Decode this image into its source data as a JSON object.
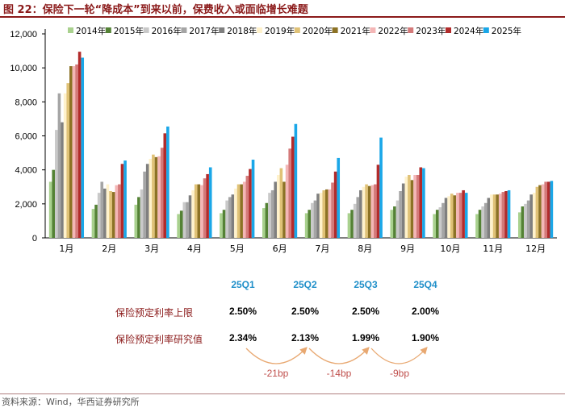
{
  "title": "图 22：保险下一轮“降成本”到来以前，保费收入或面临增长难题",
  "source": "资料来源：Wind，华西证券研究所",
  "chart_data": {
    "type": "bar",
    "categories": [
      "1月",
      "2月",
      "3月",
      "4月",
      "5月",
      "6月",
      "7月",
      "8月",
      "9月",
      "10月",
      "11月",
      "12月"
    ],
    "ylim": [
      0,
      12000
    ],
    "yticks": [
      "0",
      "2,000",
      "4,000",
      "6,000",
      "8,000",
      "10,000",
      "12,000"
    ],
    "series": [
      {
        "name": "2014年",
        "color": "#a9d18e",
        "values": [
          3300,
          1700,
          1950,
          1400,
          1450,
          1750,
          1450,
          1450,
          1650,
          1400,
          1400,
          1500
        ]
      },
      {
        "name": "2015年",
        "color": "#548235",
        "values": [
          4000,
          1950,
          2400,
          1600,
          1650,
          2050,
          1650,
          1650,
          1850,
          1650,
          1650,
          1850
        ]
      },
      {
        "name": "2016年",
        "color": "#c9c9c9",
        "values": [
          6350,
          2650,
          2850,
          2100,
          2200,
          2650,
          2050,
          2000,
          2200,
          1800,
          1850,
          2000
        ]
      },
      {
        "name": "2017年",
        "color": "#a5a5a5",
        "values": [
          8500,
          3300,
          3900,
          2100,
          2400,
          2800,
          2200,
          2400,
          2750,
          2050,
          2050,
          2200
        ]
      },
      {
        "name": "2018年",
        "color": "#7f7f7f",
        "values": [
          6800,
          2900,
          4350,
          2500,
          2550,
          3300,
          2600,
          2800,
          3200,
          2350,
          2350,
          2550
        ]
      },
      {
        "name": "2019年",
        "color": "#fff2cc",
        "values": [
          8500,
          3150,
          4650,
          2800,
          2900,
          3700,
          2650,
          3000,
          3600,
          2450,
          2550,
          2650
        ]
      },
      {
        "name": "2020年",
        "color": "#e0c277",
        "values": [
          9100,
          2750,
          4900,
          3150,
          3150,
          4100,
          2800,
          3150,
          3700,
          2600,
          2550,
          3000
        ]
      },
      {
        "name": "2021年",
        "color": "#8c7225",
        "values": [
          10100,
          2700,
          4750,
          3150,
          3150,
          3300,
          2850,
          3050,
          3400,
          2500,
          2550,
          3100
        ]
      },
      {
        "name": "2022年",
        "color": "#f4b6b6",
        "values": [
          10100,
          3100,
          4800,
          3100,
          3300,
          4300,
          2850,
          3100,
          3700,
          2650,
          2600,
          3150
        ]
      },
      {
        "name": "2023年",
        "color": "#d47a7a",
        "values": [
          10200,
          3150,
          5300,
          3500,
          3650,
          5250,
          3250,
          3150,
          3700,
          2650,
          2700,
          3300
        ]
      },
      {
        "name": "2024年",
        "color": "#b22b2b",
        "values": [
          10950,
          4350,
          6150,
          3750,
          4050,
          5950,
          3900,
          4300,
          4150,
          2800,
          2750,
          3300
        ]
      },
      {
        "name": "2025年",
        "color": "#1aa7e8",
        "values": [
          10600,
          4550,
          6550,
          4150,
          4600,
          6700,
          4700,
          5900,
          4100,
          2650,
          2800,
          3350
        ]
      }
    ]
  },
  "table": {
    "quarters": [
      "25Q1",
      "25Q2",
      "25Q3",
      "25Q4"
    ],
    "rows": [
      {
        "label": "保险预定利率上限",
        "values": [
          "2.50%",
          "2.50%",
          "2.50%",
          "2.00%"
        ]
      },
      {
        "label": "保险预定利率研究值",
        "values": [
          "2.34%",
          "2.13%",
          "1.99%",
          "1.90%"
        ]
      }
    ],
    "changes": [
      "-21bp",
      "-14bp",
      "-9bp"
    ]
  }
}
